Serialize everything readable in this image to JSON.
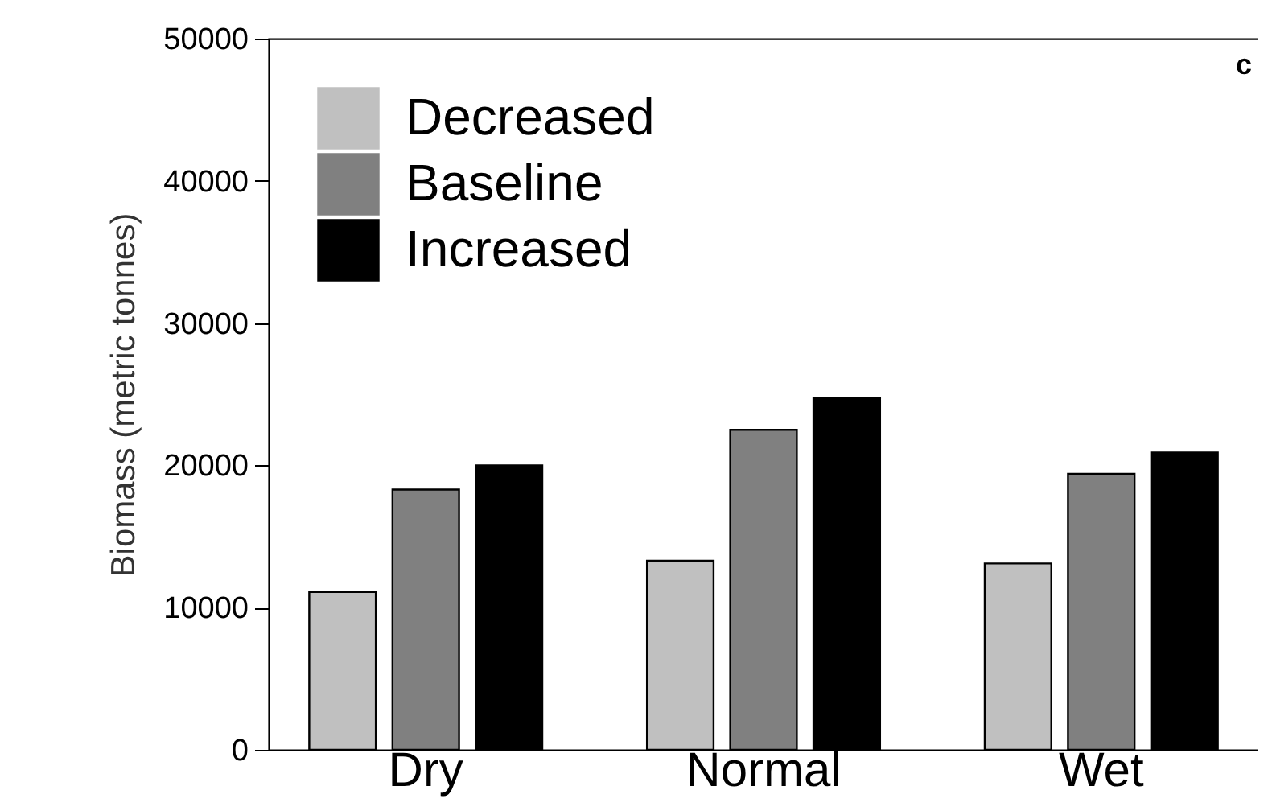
{
  "chart_data": {
    "type": "bar",
    "ylabel": "Biomass (metric tonnes)",
    "categories": [
      "Dry",
      "Normal",
      "Wet"
    ],
    "series": [
      {
        "name": "Decreased",
        "color": "#c0c0c0",
        "values": [
          11100,
          13300,
          13100
        ]
      },
      {
        "name": "Baseline",
        "color": "#808080",
        "values": [
          18300,
          22500,
          19400
        ]
      },
      {
        "name": "Increased",
        "color": "#000000",
        "values": [
          20000,
          24700,
          20900
        ]
      }
    ],
    "ylim": [
      0,
      50000
    ],
    "yticks": [
      0,
      10000,
      20000,
      30000,
      40000,
      50000
    ],
    "legend": "top left",
    "annotations": [
      "c"
    ]
  }
}
